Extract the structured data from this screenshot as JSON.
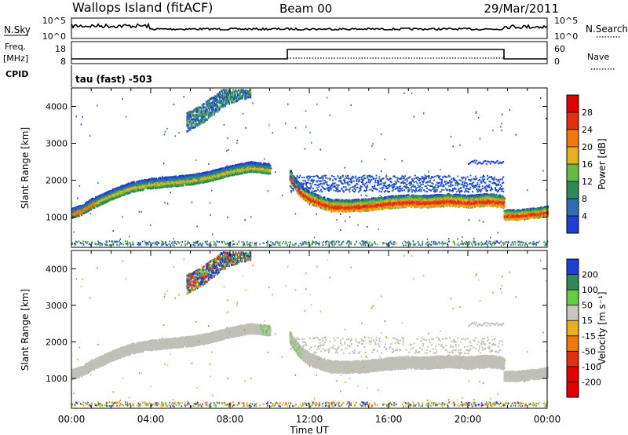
{
  "header": {
    "station": "Wallops Island (fitACF)",
    "beam": "Beam 00",
    "date": "29/Mar/2011"
  },
  "noise_panel": {
    "left_label": "N.Sky",
    "right_label": "N.Search",
    "left_ticks": [
      "10^5",
      "10^0"
    ],
    "right_ticks": [
      "10^5",
      "10^0"
    ]
  },
  "freq_panel": {
    "left_label": "Freq.",
    "left_unit": "[MHz]",
    "right_label": "Nave",
    "left_ticks": [
      "18",
      "8"
    ],
    "right_ticks": [
      "60",
      "0"
    ]
  },
  "cpid": {
    "label": "CPID",
    "value": "tau (fast) -503"
  },
  "colors": {
    "power": [
      "#1f3fd2",
      "#2f6fb0",
      "#2e8b57",
      "#66bb44",
      "#e8b020",
      "#f07a10",
      "#e03010",
      "#e00000"
    ],
    "velocity": [
      "#1f3fd2",
      "#2e8b57",
      "#66cc44",
      "#c8c8c0",
      "#e8b020",
      "#f07a10",
      "#e03010",
      "#e00000"
    ],
    "ground_scatter": "#c0c0b8"
  },
  "chart_data": [
    {
      "type": "heatmap",
      "name": "power",
      "x_unit": "hours UT",
      "xlim": [
        0,
        24
      ],
      "x_ticks": [
        "00:00",
        "04:00",
        "08:00",
        "12:00",
        "16:00",
        "20:00",
        "00:00"
      ],
      "ylabel": "Slant Range [km]",
      "ylim": [
        180,
        4500
      ],
      "y_ticks": [
        1000,
        2000,
        3000,
        4000
      ],
      "colorbar": {
        "label": "Power [dB]",
        "range": [
          0,
          32
        ],
        "ticks": [
          "4",
          "8",
          "12",
          "16",
          "20",
          "24",
          "28"
        ]
      },
      "traces": [
        {
          "desc": "main echo band",
          "x": [
            0.0,
            0.5,
            1.0,
            2.0,
            3.0,
            4.0,
            5.0,
            6.0,
            7.0,
            8.0,
            9.0,
            10.0
          ],
          "y": [
            1100,
            1180,
            1350,
            1600,
            1800,
            1900,
            1950,
            2000,
            2100,
            2250,
            2350,
            2300
          ]
        },
        {
          "desc": "post-midday band",
          "x": [
            11.0,
            11.5,
            12.0,
            13.0,
            14.0,
            15.0,
            16.0,
            17.0,
            18.0,
            19.0,
            20.0,
            21.0,
            21.8
          ],
          "y": [
            2100,
            1700,
            1500,
            1300,
            1280,
            1320,
            1380,
            1420,
            1400,
            1450,
            1400,
            1450,
            1400
          ]
        },
        {
          "desc": "evening low band",
          "x": [
            21.8,
            22.5,
            23.0,
            23.5,
            24.0
          ],
          "y": [
            1050,
            1050,
            1080,
            1100,
            1150
          ]
        },
        {
          "desc": "high range patch",
          "x": [
            5.8,
            6.5,
            7.0,
            7.5,
            8.0,
            8.5,
            9.0
          ],
          "y": [
            3600,
            3800,
            4000,
            4200,
            4350,
            4450,
            4500
          ]
        }
      ]
    },
    {
      "type": "heatmap",
      "name": "velocity",
      "x_unit": "hours UT",
      "xlim": [
        0,
        24
      ],
      "x_ticks": [
        "00:00",
        "04:00",
        "08:00",
        "12:00",
        "16:00",
        "20:00",
        "00:00"
      ],
      "xlabel": "Time UT",
      "ylabel": "Slant Range [km]",
      "ylim": [
        180,
        4500
      ],
      "y_ticks": [
        1000,
        2000,
        3000,
        4000
      ],
      "colorbar": {
        "label": "Velocity [m s⁻¹]",
        "ticks": [
          "200",
          "100",
          "50",
          "15",
          "-15",
          "-50",
          "-100",
          "-200"
        ]
      }
    }
  ]
}
